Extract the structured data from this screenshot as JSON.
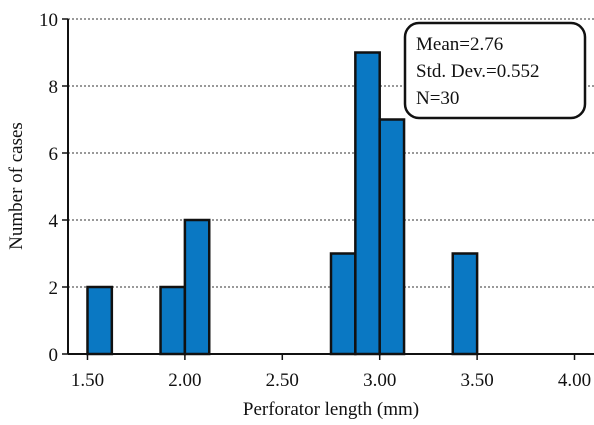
{
  "chart_data": {
    "type": "bar",
    "xlabel": "Perforator length (mm)",
    "ylabel": "Number of cases",
    "xlim": [
      1.4,
      4.1
    ],
    "ylim": [
      0,
      10
    ],
    "x_ticks": [
      "1.50",
      "2.00",
      "2.50",
      "3.00",
      "3.50",
      "4.00"
    ],
    "y_ticks": [
      "0",
      "2",
      "4",
      "6",
      "8",
      "10"
    ],
    "grid": "horizontal dashed",
    "bar_color": "#0a78c3",
    "bars": [
      {
        "x0": 1.5,
        "x1": 1.625,
        "value": 2
      },
      {
        "x0": 1.875,
        "x1": 2.0,
        "value": 2
      },
      {
        "x0": 2.0,
        "x1": 2.125,
        "value": 4
      },
      {
        "x0": 2.75,
        "x1": 2.875,
        "value": 3
      },
      {
        "x0": 2.875,
        "x1": 3.0,
        "value": 9
      },
      {
        "x0": 3.0,
        "x1": 3.125,
        "value": 7
      },
      {
        "x0": 3.375,
        "x1": 3.5,
        "value": 3
      }
    ],
    "stats": {
      "mean": "Mean=2.76",
      "std": "Std. Dev.=0.552",
      "n": "N=30"
    },
    "stats_placement": "top-right"
  }
}
